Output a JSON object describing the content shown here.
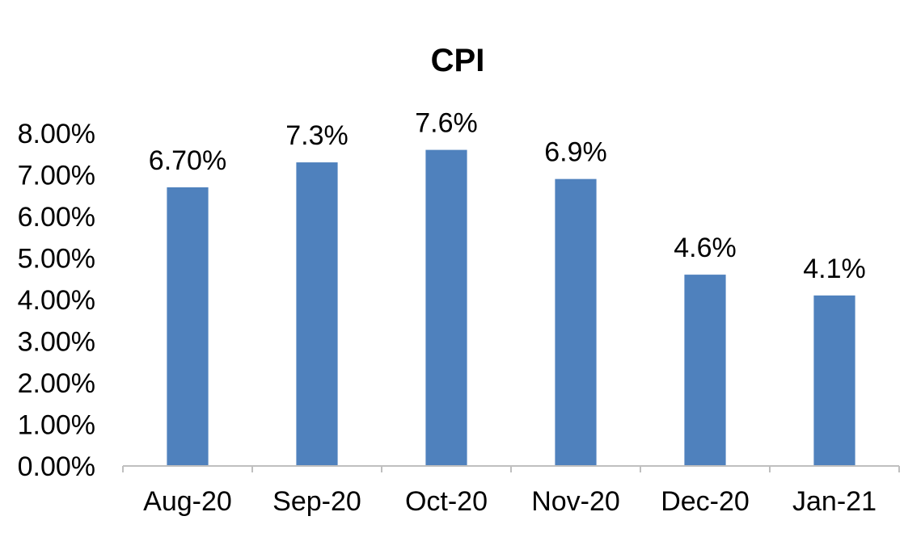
{
  "chart_data": {
    "type": "bar",
    "title": "CPI",
    "xlabel": "",
    "ylabel": "",
    "categories": [
      "Aug-20",
      "Sep-20",
      "Oct-20",
      "Nov-20",
      "Dec-20",
      "Jan-21"
    ],
    "values": [
      6.7,
      7.3,
      7.6,
      6.9,
      4.6,
      4.1
    ],
    "data_labels": [
      "6.70%",
      "7.3%",
      "7.6%",
      "6.9%",
      "4.6%",
      "4.1%"
    ],
    "ylim": [
      0,
      8
    ],
    "y_ticks": [
      0,
      1,
      2,
      3,
      4,
      5,
      6,
      7,
      8
    ],
    "y_tick_labels": [
      "0.00%",
      "1.00%",
      "2.00%",
      "3.00%",
      "4.00%",
      "5.00%",
      "6.00%",
      "7.00%",
      "8.00%"
    ],
    "bar_color": "#4f81bd",
    "grid": false,
    "legend": "none"
  }
}
